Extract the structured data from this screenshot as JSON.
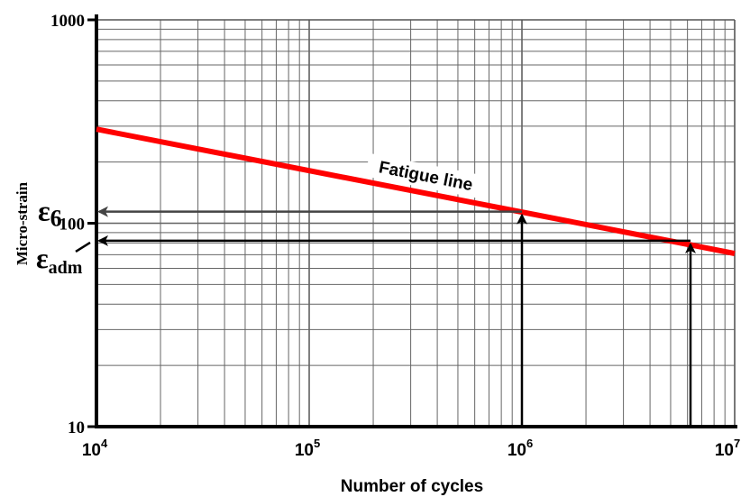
{
  "chart_data": {
    "type": "line",
    "x_scale": "log",
    "y_scale": "log",
    "xlim": [
      10000,
      10000000
    ],
    "ylim": [
      10,
      1000
    ],
    "grid": true,
    "xlabel": "Number of cycles",
    "ylabel": "Micro-strain",
    "x_ticks": [
      {
        "value": 10000,
        "base": "10",
        "exp": "4"
      },
      {
        "value": 100000,
        "base": "10",
        "exp": "5"
      },
      {
        "value": 1000000,
        "base": "10",
        "exp": "6"
      },
      {
        "value": 10000000,
        "base": "10",
        "exp": "7"
      }
    ],
    "y_ticks": [
      {
        "value": 10,
        "label": "10"
      },
      {
        "value": 100,
        "label": "100"
      },
      {
        "value": 1000,
        "label": "1000"
      }
    ],
    "series": [
      {
        "name": "Fatigue line",
        "color": "#ff0000",
        "x": [
          10000,
          10000000
        ],
        "y": [
          290,
          71
        ]
      }
    ],
    "annotations": [
      {
        "symbol": "ε",
        "subscript": "6",
        "y": 114,
        "x_cycles": 1000000
      },
      {
        "symbol": "ε",
        "subscript": "adm",
        "y": 82,
        "x_cycles": 6200000
      }
    ],
    "line_label": "Fatigue line"
  }
}
